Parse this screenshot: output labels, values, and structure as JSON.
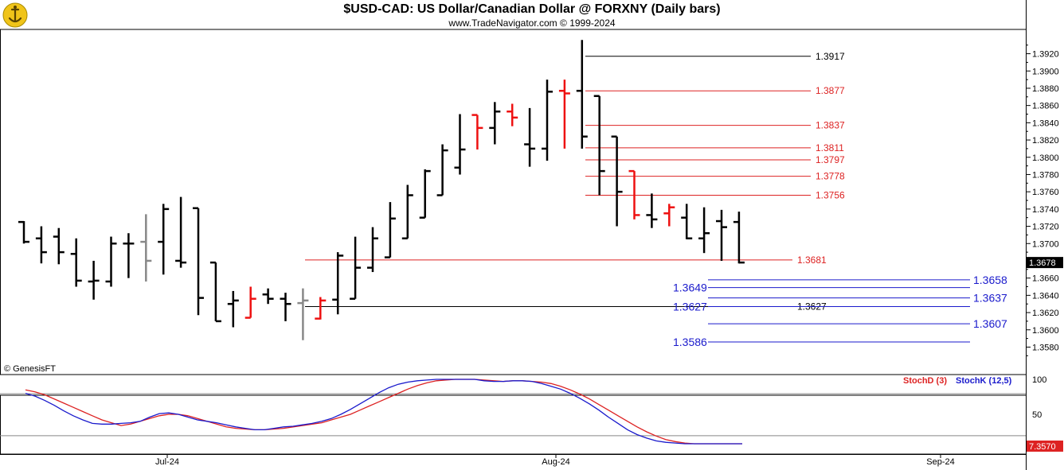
{
  "header": {
    "title": "$USD-CAD:  US Dollar/Canadian Dollar @ FORXNY  (Daily bars)",
    "subtitle": "www.TradeNavigator.com © 1999-2024",
    "watermark": "© GenesisFT"
  },
  "colors": {
    "up": "#000000",
    "down_red": "#ee1111",
    "gray": "#888888",
    "blue": "#1a1acc",
    "red_line": "#dd2222"
  },
  "chart_data": [
    {
      "type": "ohlc",
      "title": "$USD-CAD:  US Dollar/Canadian Dollar @ FORXNY  (Daily bars)",
      "ylim": [
        1.355,
        1.395
      ],
      "y_ticks": [
        "1.3920",
        "1.3900",
        "1.3880",
        "1.3860",
        "1.3840",
        "1.3820",
        "1.3800",
        "1.3780",
        "1.3760",
        "1.3740",
        "1.3720",
        "1.3700",
        "1.3680",
        "1.3660",
        "1.3640",
        "1.3620",
        "1.3600",
        "1.3580"
      ],
      "x_tick_labels": [
        "Jul-24",
        "Aug-24",
        "Sep-24"
      ],
      "last_price": "1.3678",
      "bars": [
        {
          "o": 1.3725,
          "h": 1.3726,
          "l": 1.37,
          "c": 1.3702,
          "col": "k"
        },
        {
          "o": 1.3706,
          "h": 1.372,
          "l": 1.3677,
          "c": 1.369,
          "col": "k"
        },
        {
          "o": 1.3708,
          "h": 1.3718,
          "l": 1.3676,
          "c": 1.369,
          "col": "k"
        },
        {
          "o": 1.3688,
          "h": 1.3706,
          "l": 1.365,
          "c": 1.3657,
          "col": "k"
        },
        {
          "o": 1.3656,
          "h": 1.368,
          "l": 1.3635,
          "c": 1.3657,
          "col": "k"
        },
        {
          "o": 1.3656,
          "h": 1.3708,
          "l": 1.365,
          "c": 1.37,
          "col": "k"
        },
        {
          "o": 1.37,
          "h": 1.3712,
          "l": 1.366,
          "c": 1.37,
          "col": "k"
        },
        {
          "o": 1.3702,
          "h": 1.3734,
          "l": 1.3656,
          "c": 1.368,
          "col": "g"
        },
        {
          "o": 1.3702,
          "h": 1.3746,
          "l": 1.3664,
          "c": 1.374,
          "col": "k"
        },
        {
          "o": 1.368,
          "h": 1.3754,
          "l": 1.3672,
          "c": 1.3678,
          "col": "k"
        },
        {
          "o": 1.3741,
          "h": 1.3741,
          "l": 1.3617,
          "c": 1.3637,
          "col": "k"
        },
        {
          "o": 1.3678,
          "h": 1.3678,
          "l": 1.361,
          "c": 1.361,
          "col": "k"
        },
        {
          "o": 1.363,
          "h": 1.3645,
          "l": 1.3603,
          "c": 1.3634,
          "col": "k"
        },
        {
          "o": 1.3614,
          "h": 1.365,
          "l": 1.3614,
          "c": 1.3636,
          "col": "r"
        },
        {
          "o": 1.3641,
          "h": 1.3648,
          "l": 1.363,
          "c": 1.3636,
          "col": "k"
        },
        {
          "o": 1.3636,
          "h": 1.3643,
          "l": 1.361,
          "c": 1.363,
          "col": "k"
        },
        {
          "o": 1.3631,
          "h": 1.3648,
          "l": 1.3588,
          "c": 1.3634,
          "col": "g"
        },
        {
          "o": 1.3613,
          "h": 1.3638,
          "l": 1.3612,
          "c": 1.3634,
          "col": "r"
        },
        {
          "o": 1.3635,
          "h": 1.369,
          "l": 1.3618,
          "c": 1.3686,
          "col": "k"
        },
        {
          "o": 1.3636,
          "h": 1.3708,
          "l": 1.3636,
          "c": 1.3672,
          "col": "k"
        },
        {
          "o": 1.3672,
          "h": 1.3719,
          "l": 1.3667,
          "c": 1.3706,
          "col": "k"
        },
        {
          "o": 1.3684,
          "h": 1.3748,
          "l": 1.3684,
          "c": 1.3729,
          "col": "k"
        },
        {
          "o": 1.3706,
          "h": 1.3768,
          "l": 1.3706,
          "c": 1.3756,
          "col": "k"
        },
        {
          "o": 1.373,
          "h": 1.3786,
          "l": 1.373,
          "c": 1.3784,
          "col": "k"
        },
        {
          "o": 1.3756,
          "h": 1.3815,
          "l": 1.3756,
          "c": 1.3808,
          "col": "k"
        },
        {
          "o": 1.3788,
          "h": 1.385,
          "l": 1.378,
          "c": 1.3809,
          "col": "k"
        },
        {
          "o": 1.3849,
          "h": 1.3849,
          "l": 1.3809,
          "c": 1.3834,
          "col": "r"
        },
        {
          "o": 1.3834,
          "h": 1.3864,
          "l": 1.3815,
          "c": 1.3853,
          "col": "k"
        },
        {
          "o": 1.3853,
          "h": 1.3862,
          "l": 1.3836,
          "c": 1.3846,
          "col": "r"
        },
        {
          "o": 1.3815,
          "h": 1.3857,
          "l": 1.3789,
          "c": 1.381,
          "col": "k"
        },
        {
          "o": 1.381,
          "h": 1.389,
          "l": 1.3796,
          "c": 1.3876,
          "col": "k"
        },
        {
          "o": 1.3877,
          "h": 1.389,
          "l": 1.381,
          "c": 1.3874,
          "col": "r"
        },
        {
          "o": 1.3877,
          "h": 1.3936,
          "l": 1.381,
          "c": 1.3824,
          "col": "k"
        },
        {
          "o": 1.3871,
          "h": 1.3871,
          "l": 1.3756,
          "c": 1.3784,
          "col": "k"
        },
        {
          "o": 1.3824,
          "h": 1.3824,
          "l": 1.372,
          "c": 1.376,
          "col": "k"
        },
        {
          "o": 1.3784,
          "h": 1.3784,
          "l": 1.3728,
          "c": 1.3733,
          "col": "r"
        },
        {
          "o": 1.3733,
          "h": 1.3758,
          "l": 1.3718,
          "c": 1.3728,
          "col": "k"
        },
        {
          "o": 1.3735,
          "h": 1.3746,
          "l": 1.372,
          "c": 1.3742,
          "col": "r"
        },
        {
          "o": 1.373,
          "h": 1.3746,
          "l": 1.3705,
          "c": 1.3706,
          "col": "k"
        },
        {
          "o": 1.3706,
          "h": 1.3742,
          "l": 1.3689,
          "c": 1.3712,
          "col": "k"
        },
        {
          "o": 1.3726,
          "h": 1.3739,
          "l": 1.368,
          "c": 1.3719,
          "col": "k"
        },
        {
          "o": 1.3725,
          "h": 1.3737,
          "l": 1.3677,
          "c": 1.3678,
          "col": "k"
        }
      ],
      "red_levels": [
        {
          "value": 1.3877,
          "label": "1.3877"
        },
        {
          "value": 1.3837,
          "label": "1.3837"
        },
        {
          "value": 1.3811,
          "label": "1.3811"
        },
        {
          "value": 1.3797,
          "label": "1.3797"
        },
        {
          "value": 1.3778,
          "label": "1.3778"
        },
        {
          "value": 1.3756,
          "label": "1.3756"
        },
        {
          "value": 1.3681,
          "label": "1.3681"
        }
      ],
      "black_levels": [
        {
          "value": 1.3917,
          "label": "1.3917"
        },
        {
          "value": 1.3627,
          "label": "1.3627"
        }
      ],
      "blue_levels": [
        {
          "value": 1.3658,
          "label": "1.3658",
          "side": "right"
        },
        {
          "value": 1.3649,
          "label": "1.3649",
          "side": "left"
        },
        {
          "value": 1.3637,
          "label": "1.3637",
          "side": "right"
        },
        {
          "value": 1.3627,
          "label": "1.3627",
          "side": "left"
        },
        {
          "value": 1.3607,
          "label": "1.3607",
          "side": "right"
        },
        {
          "value": 1.3586,
          "label": "1.3586",
          "side": "left"
        }
      ]
    },
    {
      "type": "line",
      "title": "",
      "ylim": [
        0,
        100
      ],
      "y_ticks": [
        "100",
        "50"
      ],
      "last_value": "7.3570",
      "series": [
        {
          "name": "StochD (3)",
          "color": "#dd2222",
          "values": [
            85,
            82,
            78,
            72,
            66,
            60,
            54,
            48,
            42,
            38,
            34,
            36,
            40,
            44,
            48,
            50,
            50,
            48,
            44,
            40,
            36,
            32,
            30,
            29,
            28,
            28,
            29,
            30,
            32,
            34,
            36,
            38,
            42,
            46,
            50,
            56,
            62,
            68,
            74,
            80,
            86,
            91,
            95,
            98,
            99,
            100,
            100,
            100,
            99,
            98,
            97,
            98,
            98,
            97,
            96,
            94,
            90,
            85,
            79,
            72,
            64,
            56,
            48,
            40,
            32,
            25,
            19,
            14,
            11,
            9,
            8,
            8,
            8,
            8,
            8,
            8
          ]
        },
        {
          "name": "StochK (12,5)",
          "color": "#1a1acc",
          "values": [
            80,
            76,
            70,
            63,
            55,
            48,
            42,
            37,
            36,
            36,
            37,
            38,
            40,
            46,
            51,
            52,
            50,
            46,
            42,
            40,
            38,
            35,
            32,
            30,
            28,
            28,
            30,
            32,
            33,
            35,
            37,
            40,
            44,
            50,
            57,
            65,
            73,
            81,
            88,
            93,
            96,
            98,
            99,
            100,
            100,
            100,
            100,
            100,
            98,
            97,
            97,
            98,
            98,
            97,
            94,
            90,
            86,
            80,
            73,
            65,
            56,
            46,
            37,
            28,
            21,
            16,
            12,
            10,
            9,
            8,
            8,
            8,
            8,
            8,
            8,
            8
          ]
        }
      ]
    }
  ]
}
